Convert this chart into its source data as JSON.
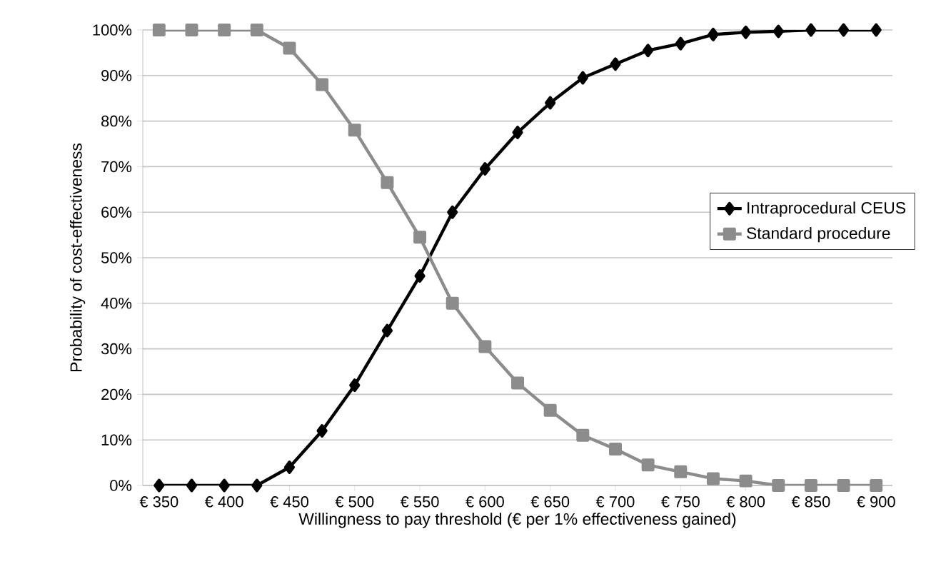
{
  "chart_data": {
    "type": "line",
    "xlabel": "Willingness to pay threshold (€ per 1% effectiveness gained)",
    "ylabel": "Probability of cost-effectiveness",
    "x": [
      350,
      375,
      400,
      425,
      450,
      475,
      500,
      525,
      550,
      575,
      600,
      625,
      650,
      675,
      700,
      725,
      750,
      775,
      800,
      825,
      850,
      875,
      900
    ],
    "xlim": [
      337.5,
      912.5
    ],
    "xticks": [
      {
        "value": 350,
        "label": "€ 350"
      },
      {
        "value": 400,
        "label": "€ 400"
      },
      {
        "value": 450,
        "label": "€ 450"
      },
      {
        "value": 500,
        "label": "€ 500"
      },
      {
        "value": 550,
        "label": "€ 550"
      },
      {
        "value": 600,
        "label": "€ 600"
      },
      {
        "value": 650,
        "label": "€ 650"
      },
      {
        "value": 700,
        "label": "€ 700"
      },
      {
        "value": 750,
        "label": "€ 750"
      },
      {
        "value": 800,
        "label": "€ 800"
      },
      {
        "value": 850,
        "label": "€ 850"
      },
      {
        "value": 900,
        "label": "€ 900"
      }
    ],
    "ylim": [
      0,
      100
    ],
    "yticks": [
      {
        "value": 0,
        "label": "0%"
      },
      {
        "value": 10,
        "label": "10%"
      },
      {
        "value": 20,
        "label": "20%"
      },
      {
        "value": 30,
        "label": "30%"
      },
      {
        "value": 40,
        "label": "40%"
      },
      {
        "value": 50,
        "label": "50%"
      },
      {
        "value": 60,
        "label": "60%"
      },
      {
        "value": 70,
        "label": "70%"
      },
      {
        "value": 80,
        "label": "80%"
      },
      {
        "value": 90,
        "label": "90%"
      },
      {
        "value": 100,
        "label": "100%"
      }
    ],
    "grid": "y",
    "legend": "right",
    "series": [
      {
        "name": "Intraprocedural CEUS",
        "color": "#000000",
        "marker": "diamond",
        "values": [
          0,
          0,
          0,
          0,
          4,
          12,
          22,
          34,
          46,
          60,
          69.5,
          77.5,
          84,
          89.5,
          92.5,
          95.5,
          97,
          99,
          99.5,
          99.7,
          100,
          100,
          100
        ]
      },
      {
        "name": "Standard procedure",
        "color": "#8c8c8c",
        "marker": "square",
        "values": [
          100,
          100,
          100,
          100,
          96,
          88,
          78,
          66.5,
          54.5,
          40,
          30.5,
          22.5,
          16.5,
          11,
          8,
          4.5,
          3,
          1.5,
          1,
          0,
          0,
          0,
          0
        ]
      }
    ]
  }
}
